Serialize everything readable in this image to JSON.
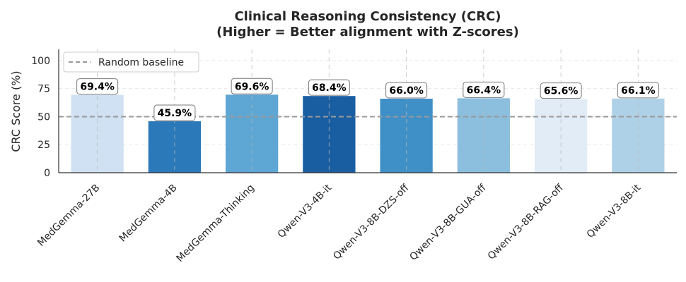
{
  "chart_data": {
    "type": "bar",
    "title_lines": [
      "Clinical Reasoning Consistency (CRC)",
      "(Higher = Better alignment with Z-scores)"
    ],
    "xlabel": "",
    "ylabel": "CRC Score (%)",
    "ylim": [
      0,
      110
    ],
    "yticks": [
      0,
      25,
      50,
      75,
      100
    ],
    "grid": true,
    "categories": [
      "MedGemma-27B",
      "MedGemma-4B",
      "MedGemma-Thinking",
      "Qwen-V3-4B-it",
      "Qwen-V3-8B-DZS-off",
      "Qwen-V3-8B-GUA-off",
      "Qwen-V3-8B-RAG-off",
      "Qwen-V3-8B-it"
    ],
    "values": [
      69.4,
      45.9,
      69.6,
      68.4,
      66.0,
      66.4,
      65.6,
      66.1
    ],
    "data_labels": [
      "69.4%",
      "45.9%",
      "69.6%",
      "68.4%",
      "66.0%",
      "66.4%",
      "65.6%",
      "66.1%"
    ],
    "bar_colors": [
      "#cfe1f2",
      "#2b79b9",
      "#5ea6d3",
      "#1a5ea2",
      "#4090c8",
      "#8cbfde",
      "#e1ecf7",
      "#afd1e7"
    ],
    "baseline": {
      "value": 50,
      "label": "Random baseline",
      "color": "#999999"
    },
    "legend_location": "top-left"
  }
}
